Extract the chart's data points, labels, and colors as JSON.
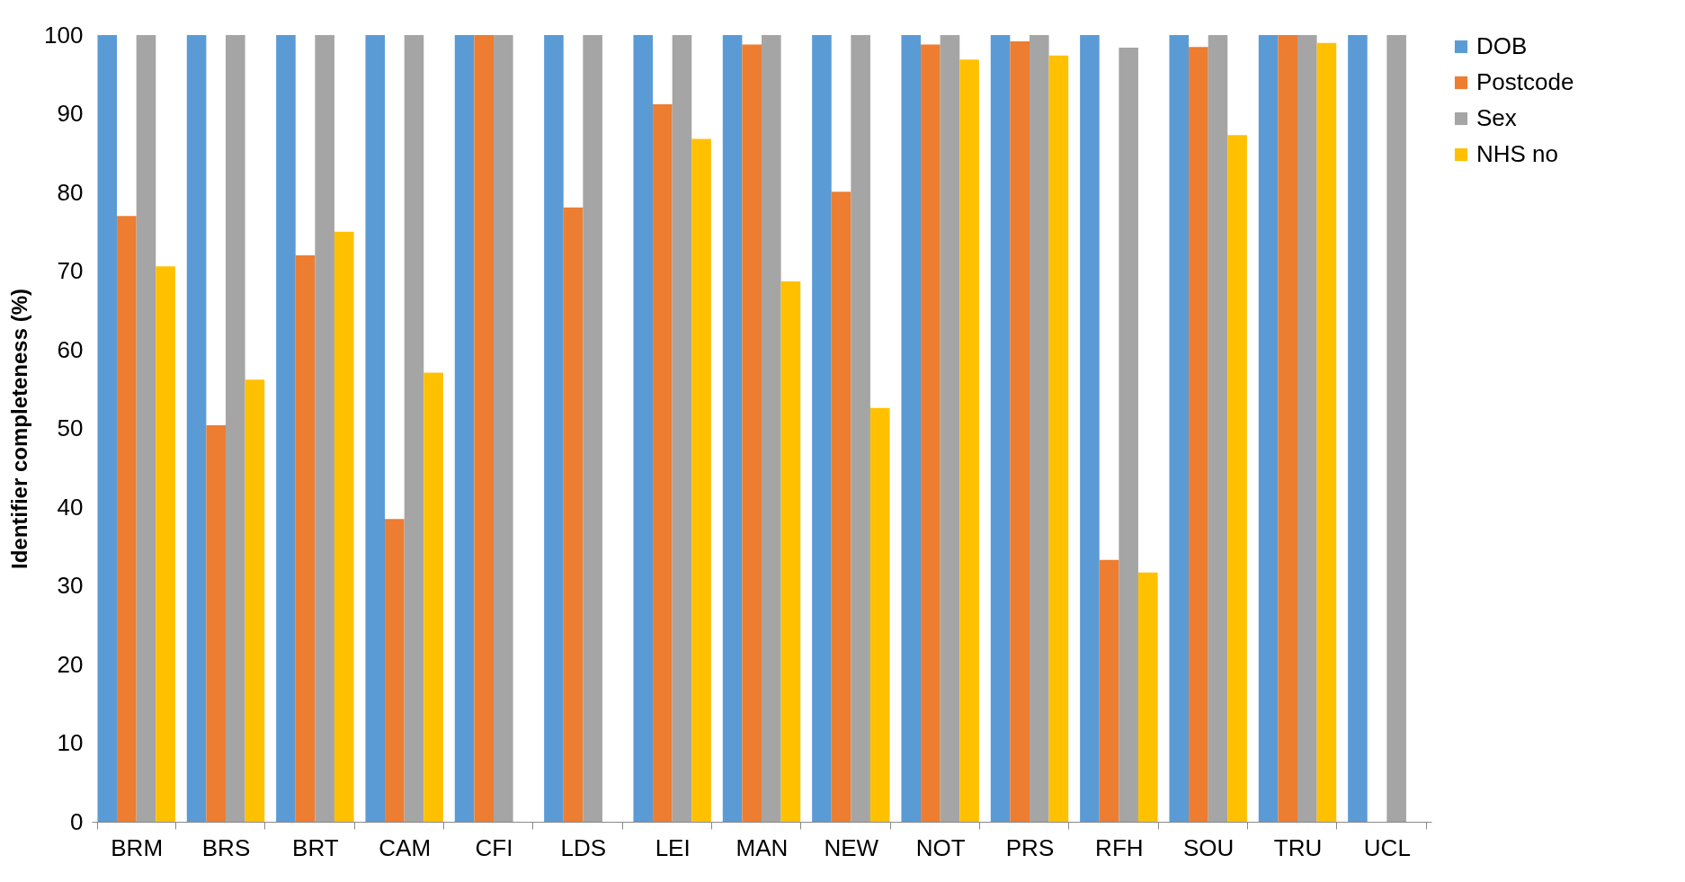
{
  "chart_data": {
    "type": "bar",
    "ylabel": "Identifier completeness (%)",
    "categories": [
      "BRM",
      "BRS",
      "BRT",
      "CAM",
      "CFI",
      "LDS",
      "LEI",
      "MAN",
      "NEW",
      "NOT",
      "PRS",
      "RFH",
      "SOU",
      "TRU",
      "UCL"
    ],
    "series": [
      {
        "name": "DOB",
        "color": "#5b9bd5",
        "values": [
          100,
          100,
          100,
          100,
          100,
          100,
          100,
          100,
          100,
          100,
          100,
          100,
          100,
          100,
          100
        ]
      },
      {
        "name": "Postcode",
        "color": "#ed7d31",
        "values": [
          77,
          50.4,
          72,
          38.5,
          100,
          78.1,
          91.2,
          98.8,
          80.1,
          98.8,
          99.2,
          33.3,
          98.5,
          100,
          null
        ]
      },
      {
        "name": "Sex",
        "color": "#a5a5a5",
        "values": [
          100,
          100,
          100,
          100,
          100,
          100,
          100,
          100,
          100,
          100,
          100,
          98.4,
          100,
          100,
          100
        ]
      },
      {
        "name": "NHS no",
        "color": "#ffc000",
        "values": [
          70.6,
          56.2,
          75,
          57.1,
          null,
          null,
          86.8,
          68.7,
          52.6,
          96.9,
          97.4,
          31.7,
          87.3,
          99,
          null
        ]
      }
    ],
    "ylim": [
      0,
      100
    ],
    "yticks": [
      0,
      10,
      20,
      30,
      40,
      50,
      60,
      70,
      80,
      90,
      100
    ],
    "grid": false,
    "legend": "right"
  }
}
